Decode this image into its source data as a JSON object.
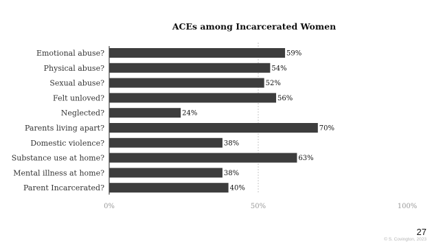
{
  "slide": {
    "page_number": "27",
    "copyright": "© S. Covington, 2023"
  },
  "colors": {
    "bar": "#3d3d3d",
    "axis_line": "#222222",
    "gridline_dashed": "#c4c4c4",
    "tick_text": "#9a9a9a"
  },
  "chart_data": {
    "type": "bar",
    "orientation": "horizontal",
    "title": "ACEs among Incarcerated Women",
    "categories": [
      "Emotional abuse?",
      "Physical abuse?",
      "Sexual abuse?",
      "Felt unloved?",
      "Neglected?",
      "Parents living apart?",
      "Domestic violence?",
      "Substance use at home?",
      "Mental illness at home?",
      "Parent Incarcerated?"
    ],
    "values": [
      59,
      54,
      52,
      56,
      24,
      70,
      38,
      63,
      38,
      40
    ],
    "value_labels": [
      "59%",
      "54%",
      "52%",
      "56%",
      "24%",
      "70%",
      "38%",
      "63%",
      "38%",
      "40%"
    ],
    "xlim": [
      0,
      100
    ],
    "x_ticks": [
      0,
      50,
      100
    ],
    "x_tick_labels": [
      "0%",
      "50%",
      "100%"
    ],
    "gridlines": "dashed vertical at 50%",
    "legend": "none"
  }
}
